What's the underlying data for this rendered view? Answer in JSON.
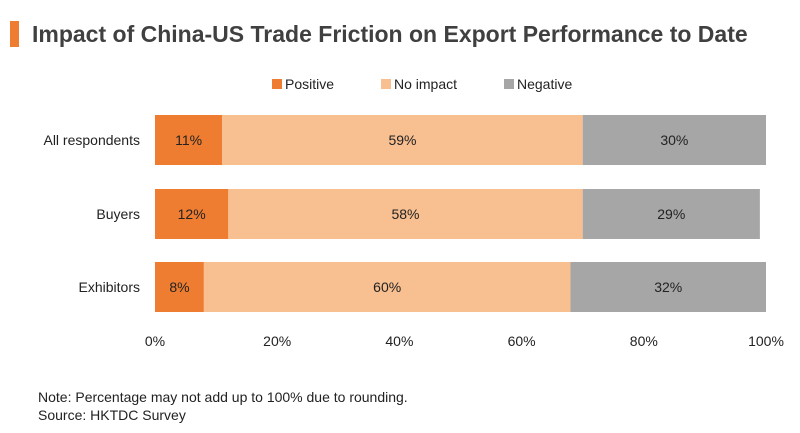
{
  "title": "Impact of China-US Trade Friction on Export Performance to Date",
  "colors": {
    "accent": "#EE7D31",
    "positive": "#EE7D31",
    "no_impact": "#F8BF90",
    "negative": "#A6A6A6"
  },
  "chart_data": {
    "type": "bar",
    "orientation": "horizontal",
    "stacked": true,
    "categories": [
      "All respondents",
      "Buyers",
      "Exhibitors"
    ],
    "series": [
      {
        "name": "Positive",
        "values": [
          11,
          12,
          8
        ],
        "labels": [
          "11%",
          "12%",
          "8%"
        ]
      },
      {
        "name": "No impact",
        "values": [
          59,
          58,
          60
        ],
        "labels": [
          "59%",
          "58%",
          "60%"
        ]
      },
      {
        "name": "Negative",
        "values": [
          30,
          29,
          32
        ],
        "labels": [
          "30%",
          "29%",
          "32%"
        ]
      }
    ],
    "xlim": [
      0,
      100
    ],
    "xticks": [
      0,
      20,
      40,
      60,
      80,
      100
    ],
    "xtick_labels": [
      "0%",
      "20%",
      "40%",
      "60%",
      "80%",
      "100%"
    ],
    "legend_position": "top",
    "grid": false
  },
  "footnotes": {
    "note": "Note: Percentage may not add up to 100% due to rounding.",
    "source": "Source: HKTDC Survey"
  }
}
